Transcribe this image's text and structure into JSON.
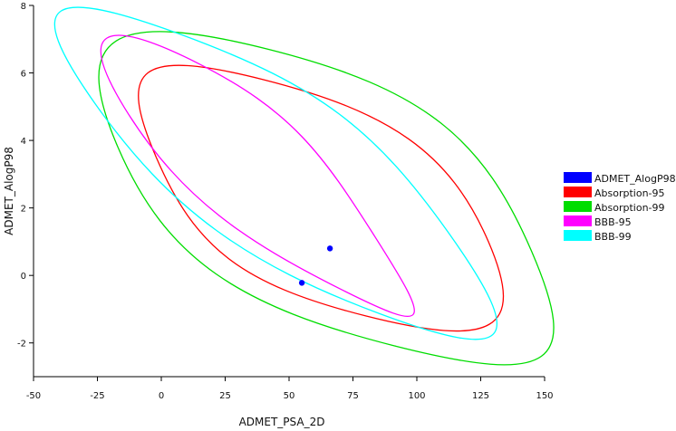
{
  "chart_data": {
    "type": "scatter",
    "xlabel": "ADMET_PSA_2D",
    "ylabel": "ADMET_AlogP98",
    "xlim": [
      -50,
      150
    ],
    "ylim": [
      -3,
      8
    ],
    "x_ticks": [
      -50,
      -25,
      0,
      25,
      50,
      75,
      100,
      125,
      150
    ],
    "y_ticks": [
      -2,
      0,
      2,
      4,
      6,
      8
    ],
    "grid": false,
    "legend_position": "right",
    "points": {
      "name": "ADMET_AlogP98",
      "color": "#0000ff",
      "data": [
        {
          "x": 66,
          "y": 0.8
        },
        {
          "x": 55,
          "y": -0.22
        }
      ]
    },
    "ellipses": [
      {
        "name": "Absorption-95",
        "color": "#ff0000",
        "outline": [
          [
            -2,
            3.5
          ],
          [
            40,
            5.8
          ],
          [
            128,
            1.0
          ],
          [
            80,
            -1.2
          ]
        ]
      },
      {
        "name": "Absorption-99",
        "color": "#00dd00",
        "outline": [
          [
            -17,
            3.8
          ],
          [
            42,
            6.7
          ],
          [
            145,
            0.7
          ],
          [
            92,
            -2.1
          ]
        ]
      },
      {
        "name": "BBB-95",
        "color": "#ff00ff",
        "outline": [
          [
            -13,
            4.8
          ],
          [
            14,
            6.3
          ],
          [
            84,
            1.1
          ],
          [
            70,
            -0.4
          ]
        ]
      },
      {
        "name": "BBB-99",
        "color": "#00ffff",
        "outline": [
          [
            -26,
            5.1
          ],
          [
            9,
            7.1
          ],
          [
            113,
            1.2
          ],
          [
            86,
            -1.15
          ]
        ]
      }
    ]
  }
}
